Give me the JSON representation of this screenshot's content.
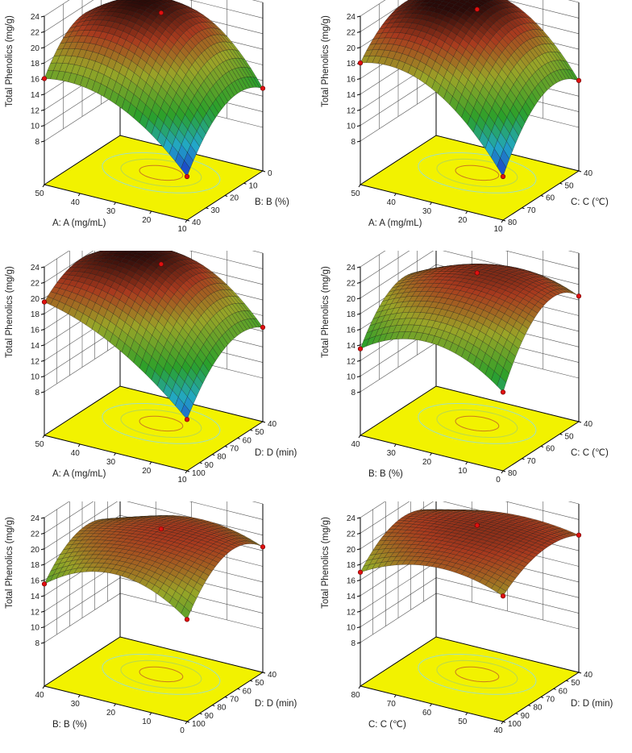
{
  "chart_data": [
    {
      "type": "surface",
      "z_label": "Total Phenolics  (mg/g)",
      "x_label": "A: A (mg/mL)",
      "y_label": "B: B (%)",
      "x_ticks": [
        "50",
        "40",
        "30",
        "20",
        "10"
      ],
      "y_ticks": [
        "40",
        "30",
        "20",
        "10",
        "0"
      ],
      "z_ticks": [
        "8",
        "10",
        "12",
        "14",
        "16",
        "18",
        "20",
        "22",
        "24"
      ],
      "zlim": [
        8,
        24
      ],
      "x_grid": [
        50,
        30,
        10
      ],
      "y_grid": [
        40,
        20,
        0
      ],
      "z_grid": [
        [
          16,
          21,
          17
        ],
        [
          15,
          22.5,
          21
        ],
        [
          8,
          14,
          13
        ]
      ]
    },
    {
      "type": "surface",
      "z_label": "Total Phenolics  (mg/g)",
      "x_label": "A: A (mg/mL)",
      "y_label": "C: C (℃)",
      "x_ticks": [
        "50",
        "40",
        "30",
        "20",
        "10"
      ],
      "y_ticks": [
        "80",
        "70",
        "60",
        "50",
        "40"
      ],
      "z_ticks": [
        "8",
        "10",
        "12",
        "14",
        "16",
        "18",
        "20",
        "22",
        "24"
      ],
      "zlim": [
        8,
        24
      ],
      "x_grid": [
        50,
        30,
        10
      ],
      "y_grid": [
        80,
        60,
        40
      ],
      "z_grid": [
        [
          18,
          22,
          20
        ],
        [
          17,
          23,
          22
        ],
        [
          8,
          15,
          14
        ]
      ]
    },
    {
      "type": "surface",
      "z_label": "Total Phenolics  (mg/g)",
      "x_label": "A: A (mg/mL)",
      "y_label": "D: D (min)",
      "x_ticks": [
        "50",
        "40",
        "30",
        "20",
        "10"
      ],
      "y_ticks": [
        "100",
        "90",
        "80",
        "70",
        "60",
        "50",
        "40"
      ],
      "z_ticks": [
        "8",
        "10",
        "12",
        "14",
        "16",
        "18",
        "20",
        "22",
        "24"
      ],
      "zlim": [
        8,
        24
      ],
      "x_grid": [
        50,
        30,
        10
      ],
      "y_grid": [
        100,
        70,
        40
      ],
      "z_grid": [
        [
          19.5,
          22,
          19
        ],
        [
          16,
          22.5,
          21
        ],
        [
          9,
          15,
          14.5
        ]
      ]
    },
    {
      "type": "surface",
      "z_label": "Total Phenolics  (mg/g)",
      "x_label": "B: B (%)",
      "y_label": "C: C (℃)",
      "x_ticks": [
        "40",
        "30",
        "20",
        "10",
        "0"
      ],
      "y_ticks": [
        "80",
        "70",
        "60",
        "50",
        "40"
      ],
      "z_ticks": [
        "8",
        "10",
        "12",
        "14",
        "16",
        "18",
        "20",
        "22",
        "24"
      ],
      "zlim": [
        8,
        24
      ],
      "x_grid": [
        40,
        20,
        0
      ],
      "y_grid": [
        80,
        60,
        40
      ],
      "z_grid": [
        [
          13.5,
          19,
          16
        ],
        [
          16.5,
          21.5,
          20
        ],
        [
          12.5,
          20,
          18.5
        ]
      ]
    },
    {
      "type": "surface",
      "z_label": "Total Phenolics  (mg/g)",
      "x_label": "B: B (%)",
      "y_label": "D: D (min)",
      "x_ticks": [
        "40",
        "30",
        "20",
        "10",
        "0"
      ],
      "y_ticks": [
        "100",
        "90",
        "80",
        "70",
        "60",
        "50",
        "40"
      ],
      "z_ticks": [
        "8",
        "10",
        "12",
        "14",
        "16",
        "18",
        "20",
        "22",
        "24"
      ],
      "zlim": [
        8,
        24
      ],
      "x_grid": [
        40,
        20,
        0
      ],
      "y_grid": [
        100,
        70,
        40
      ],
      "z_grid": [
        [
          15.5,
          19.5,
          17
        ],
        [
          19,
          21,
          20
        ],
        [
          15.5,
          20.5,
          18.5
        ]
      ]
    },
    {
      "type": "surface",
      "z_label": "Total Phenolics  (mg/g)",
      "x_label": "C: C (℃)",
      "y_label": "D: D (min)",
      "x_ticks": [
        "80",
        "70",
        "60",
        "50",
        "40"
      ],
      "y_ticks": [
        "100",
        "90",
        "80",
        "70",
        "60",
        "50",
        "40"
      ],
      "z_ticks": [
        "8",
        "10",
        "12",
        "14",
        "16",
        "18",
        "20",
        "22",
        "24"
      ],
      "zlim": [
        8,
        24
      ],
      "x_grid": [
        80,
        60,
        40
      ],
      "y_grid": [
        100,
        70,
        40
      ],
      "z_grid": [
        [
          17,
          20.5,
          18.5
        ],
        [
          20,
          21.5,
          20.5
        ],
        [
          18.5,
          21,
          20
        ]
      ]
    }
  ],
  "colors": {
    "floor": "#f2f200",
    "low": "#1a2fc8",
    "mid": "#2aa02a",
    "high": "#a83a1e",
    "top": "#2a0a08",
    "design_point": "#e01010"
  }
}
